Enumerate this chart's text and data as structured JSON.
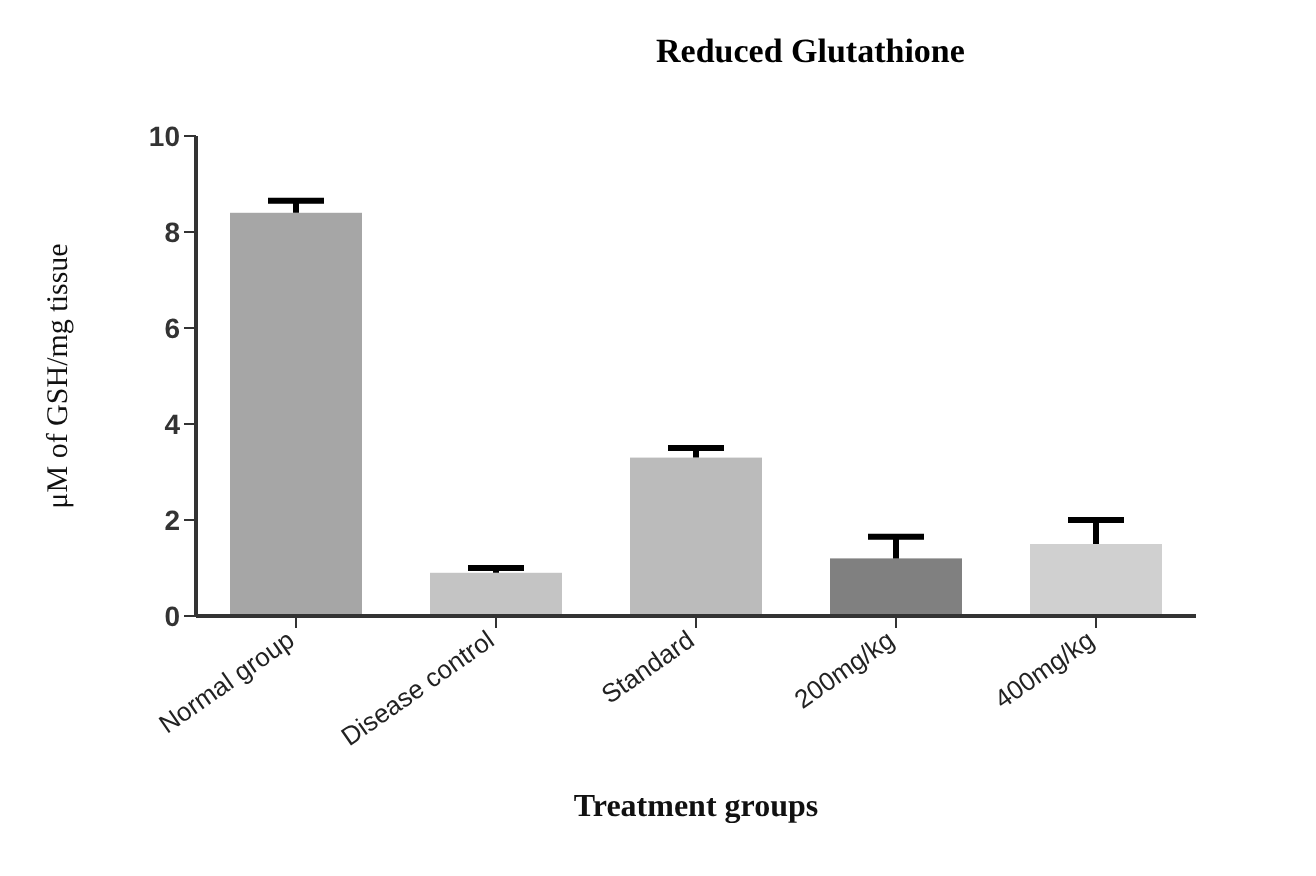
{
  "chart_data": {
    "type": "bar",
    "title": "Reduced Glutathione",
    "xlabel": "Treatment groups",
    "ylabel": "μM of GSH/mg tissue",
    "categories": [
      "Normal group",
      "Disease control",
      "Standard",
      "200mg/kg",
      "400mg/kg"
    ],
    "values": [
      8.4,
      0.9,
      3.3,
      1.2,
      1.5
    ],
    "colors": [
      "#a6a6a6",
      "#c4c4c4",
      "#bbbbbb",
      "#808080",
      "#d0d0d0"
    ],
    "errors": [
      [
        8.4,
        8.65
      ],
      [
        0.9,
        1.0
      ],
      [
        3.3,
        3.5
      ],
      [
        1.2,
        1.65
      ],
      [
        1.5,
        2.0
      ]
    ],
    "ylim": [
      0,
      10
    ],
    "yticks": [
      0,
      2,
      4,
      6,
      8,
      10
    ],
    "grid": false,
    "legend": false
  }
}
